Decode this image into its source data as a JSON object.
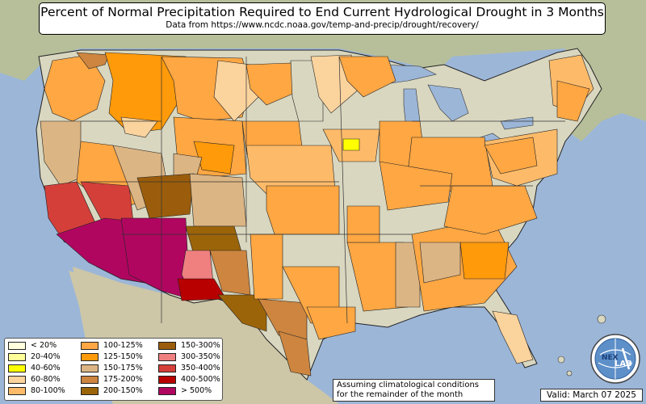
{
  "header": {
    "title": "Percent of Normal Precipitation Required to End Current Hydrological Drought in 3 Months",
    "subtitle": "Data from https://www.ncdc.noaa.gov/temp-and-precip/drought/recovery/"
  },
  "legend": {
    "items": [
      {
        "label": "< 20%",
        "color": "#ffffdd"
      },
      {
        "label": "20-40%",
        "color": "#ffff99"
      },
      {
        "label": "40-60%",
        "color": "#ffff00"
      },
      {
        "label": "60-80%",
        "color": "#fbd39d"
      },
      {
        "label": "80-100%",
        "color": "#fdbb6a"
      },
      {
        "label": "100-125%",
        "color": "#fea743"
      },
      {
        "label": "125-150%",
        "color": "#ff9a0a"
      },
      {
        "label": "150-175%",
        "color": "#dcb584"
      },
      {
        "label": "175-200%",
        "color": "#cd853f"
      },
      {
        "label": "200-150%",
        "color": "#9c6409"
      },
      {
        "label": "150-300%",
        "color": "#9b5d0b"
      },
      {
        "label": "300-350%",
        "color": "#f08080"
      },
      {
        "label": "350-400%",
        "color": "#d43f3a"
      },
      {
        "label": "400-500%",
        "color": "#b80000"
      },
      {
        "label": "> 500%",
        "color": "#b00660"
      }
    ]
  },
  "footer": {
    "note_line1": "Assuming climatological conditions",
    "note_line2": "for the remainder of the month",
    "valid": "Valid: March 07 2025"
  },
  "logo": {
    "text_left": "NEX",
    "text_right": "LAB",
    "icon": "globe-logo-icon"
  },
  "colors": {
    "ocean": "#9cb6d8",
    "land": "#d9d7c0",
    "border": "#222222"
  }
}
